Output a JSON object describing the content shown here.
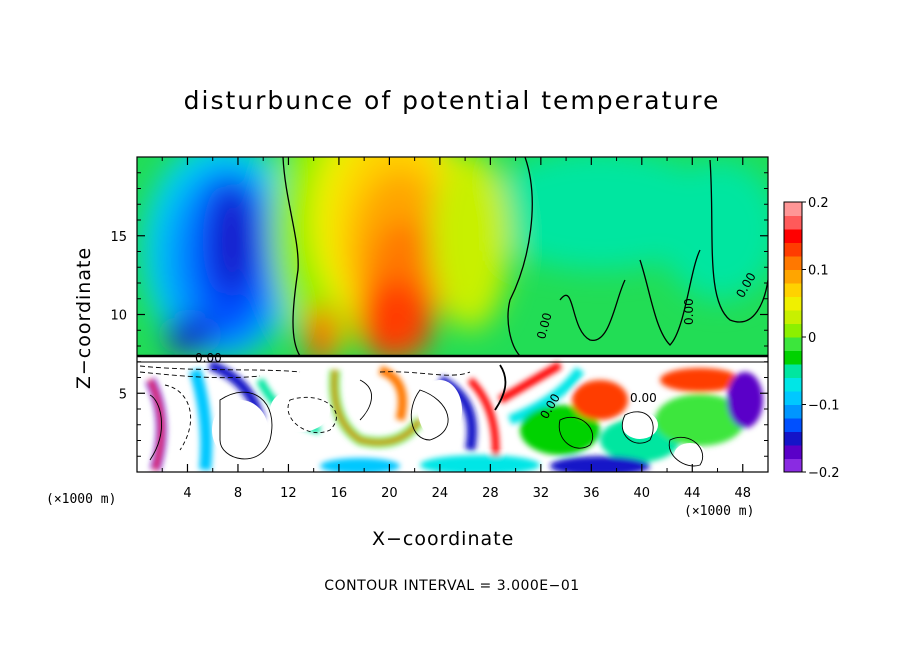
{
  "chart_data": {
    "type": "heatmap",
    "title": "disturbunce of potential temperature",
    "xlabel": "X−coordinate",
    "ylabel": "Z−coordinate",
    "x_unit_label": "(×1000 m)",
    "x_unit_label_right": "(×1000 m)",
    "footer": "CONTOUR INTERVAL = 3.000E−01",
    "xlim": [
      0,
      50
    ],
    "ylim": [
      0,
      20
    ],
    "x_ticks": [
      4,
      8,
      12,
      16,
      20,
      24,
      28,
      32,
      36,
      40,
      44,
      48
    ],
    "x_tick_labels": [
      "4",
      "8",
      "12",
      "16",
      "20",
      "24",
      "28",
      "32",
      "36",
      "40",
      "44",
      "48"
    ],
    "y_ticks": [
      5,
      10,
      15
    ],
    "y_tick_labels": [
      "5",
      "10",
      "15"
    ],
    "colorbar": {
      "range": [
        -0.2,
        0.2
      ],
      "tick_values": [
        0.2,
        0.1,
        0,
        -0.1,
        -0.2
      ],
      "tick_labels": [
        "0.2",
        "0.1",
        "0",
        "−0.1",
        "−0.2"
      ],
      "colors": [
        "#8a2be2",
        "#5a00c8",
        "#1414c8",
        "#0050ff",
        "#0096ff",
        "#00c8ff",
        "#00e6e6",
        "#00e6a0",
        "#00d200",
        "#3ce63c",
        "#8cf000",
        "#c8f000",
        "#f0f000",
        "#ffd200",
        "#ffa500",
        "#ff7800",
        "#ff3c00",
        "#ff0000",
        "#ff5a5a",
        "#ff9696"
      ]
    },
    "contour_labels": [
      "0.00",
      "0.00",
      "0.00",
      "0.00",
      "0.00",
      "0.00"
    ],
    "interface_level": 7.2
  }
}
